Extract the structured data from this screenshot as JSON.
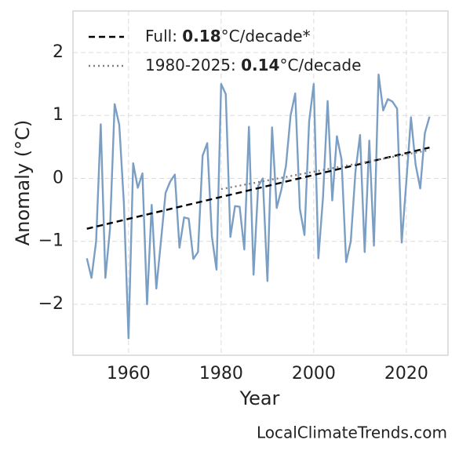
{
  "chart_data": {
    "type": "line",
    "xlabel": "Year",
    "ylabel": "Anomaly (°C)",
    "credit": "LocalClimateTrends.com",
    "xlim": [
      1948,
      2029
    ],
    "ylim": [
      -2.81,
      2.66
    ],
    "xticks": [
      1960,
      1980,
      2000,
      2020
    ],
    "yticks": [
      {
        "value": -2,
        "label": "−2"
      },
      {
        "value": -1,
        "label": "−1"
      },
      0,
      1,
      2
    ],
    "grid": true,
    "legend": "upper left",
    "series": [
      {
        "color": "#7b9ec4",
        "x": [
          1951,
          1952,
          1953,
          1954,
          1955,
          1956,
          1957,
          1958,
          1959,
          1960,
          1961,
          1962,
          1963,
          1964,
          1965,
          1966,
          1967,
          1968,
          1969,
          1970,
          1971,
          1972,
          1973,
          1974,
          1975,
          1976,
          1977,
          1978,
          1979,
          1980,
          1981,
          1982,
          1983,
          1984,
          1985,
          1986,
          1987,
          1988,
          1989,
          1990,
          1991,
          1992,
          1993,
          1994,
          1995,
          1996,
          1997,
          1998,
          1999,
          2000,
          2001,
          2002,
          2003,
          2004,
          2005,
          2006,
          2007,
          2008,
          2009,
          2010,
          2011,
          2012,
          2013,
          2014,
          2015,
          2016,
          2017,
          2018,
          2019,
          2020,
          2021,
          2022,
          2023,
          2024,
          2025
        ],
        "values": [
          -1.27,
          -1.58,
          -1.0,
          0.86,
          -1.58,
          -0.8,
          1.18,
          0.85,
          -0.4,
          -2.54,
          0.24,
          -0.15,
          0.08,
          -2.0,
          -0.42,
          -1.75,
          -1.0,
          -0.23,
          -0.05,
          0.06,
          -1.1,
          -0.62,
          -0.64,
          -1.28,
          -1.17,
          0.36,
          0.56,
          -0.92,
          -1.45,
          1.5,
          1.34,
          -0.93,
          -0.44,
          -0.45,
          -1.13,
          0.82,
          -1.53,
          -0.12,
          0.0,
          -1.63,
          0.81,
          -0.47,
          -0.18,
          0.2,
          1.0,
          1.35,
          -0.48,
          -0.9,
          0.9,
          1.5,
          -1.27,
          -0.3,
          1.23,
          -0.35,
          0.67,
          0.3,
          -1.33,
          -1.0,
          0.1,
          0.69,
          -1.17,
          0.6,
          -1.07,
          1.65,
          1.08,
          1.26,
          1.22,
          1.11,
          -1.02,
          -0.05,
          0.97,
          0.22,
          -0.16,
          0.72,
          0.98
        ]
      }
    ],
    "trends": [
      {
        "name_parts": [
          "Full: ",
          "0.18",
          "°C/decade*"
        ],
        "color": "#000000",
        "dash": "dashed",
        "x": [
          1951,
          2025
        ],
        "values": [
          -0.8,
          0.49
        ]
      },
      {
        "name_parts": [
          "1980-2025: ",
          "0.14",
          "°C/decade"
        ],
        "color": "#808080",
        "dash": "dotted",
        "x": [
          1980,
          2025
        ],
        "values": [
          -0.17,
          0.45
        ]
      }
    ]
  }
}
